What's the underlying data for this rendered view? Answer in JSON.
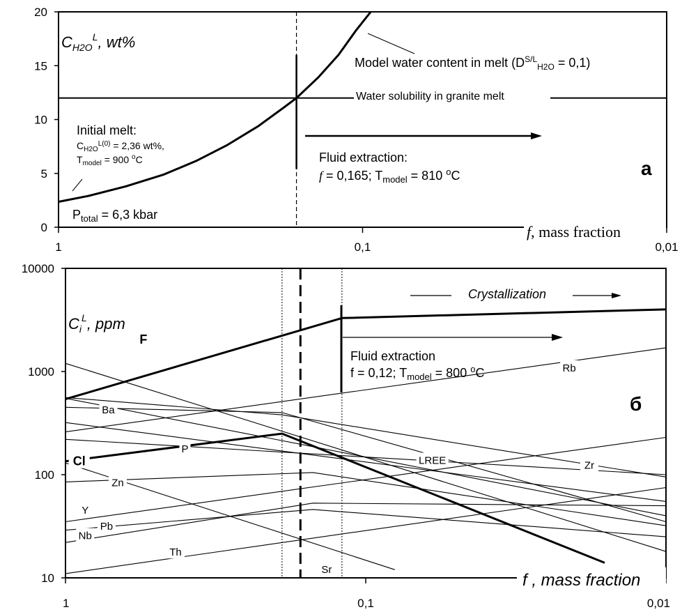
{
  "chart_data": [
    {
      "panel": "a",
      "type": "line",
      "x_scale": "log",
      "x_reversed": true,
      "xlim": [
        1,
        0.01
      ],
      "ylim": [
        0,
        20
      ],
      "x_ticks": [
        "1",
        "0,1",
        "0,01"
      ],
      "y_ticks": [
        "0",
        "5",
        "10",
        "15",
        "20"
      ],
      "ylabel": {
        "main": "C",
        "sub": "H2O",
        "sup": "L",
        "rest": ", wt%"
      },
      "xlabel": {
        "var": "f",
        "rest": ", mass fraction"
      },
      "panel_label": "a",
      "vline_x": 0.165,
      "hline_y": 12,
      "series": [
        {
          "label": "Model water content in melt (D",
          "x": [
            1,
            0.8,
            0.6,
            0.45,
            0.35,
            0.28,
            0.22,
            0.18,
            0.165,
            0.14,
            0.12,
            0.105,
            0.094
          ],
          "y": [
            2.36,
            2.9,
            3.8,
            4.9,
            6.2,
            7.6,
            9.4,
            11.2,
            12.0,
            13.9,
            16.0,
            18.3,
            20.0
          ]
        }
      ],
      "annotations": {
        "model_water": {
          "text": "Model water content in melt (D",
          "sup": "S/L",
          "sub": "H2O",
          "tail": " = 0,1)"
        },
        "solubility": "Water solubility in granite melt",
        "initial_melt": "Initial melt:",
        "init_conc": {
          "main": "C",
          "sub": "H2O",
          "sup": "L(0)",
          "tail": " = 2,36 wt%,"
        },
        "init_temp": {
          "main": "T",
          "sub": "model",
          "tail": " = 900 ",
          "deg": "o",
          "unit": "C"
        },
        "pressure": {
          "main": "P",
          "sub": "total",
          "tail": " = 6,3 kbar"
        },
        "fluid_title": "Fluid extraction:",
        "fluid_params": {
          "var": "f",
          "val": " = 0,165;  T",
          "sub": "model",
          "tail": " = 810 ",
          "deg": "o",
          "unit": "C"
        }
      }
    },
    {
      "panel": "б",
      "type": "line",
      "x_scale": "log",
      "y_scale": "log",
      "x_reversed": true,
      "xlim": [
        1,
        0.01
      ],
      "ylim": [
        10,
        10000
      ],
      "x_ticks": [
        "1",
        "0,1",
        "0,01"
      ],
      "y_ticks": [
        "10",
        "100",
        "1000",
        "10000"
      ],
      "ylabel": {
        "main": "C",
        "sub": "i",
        "sup": "L",
        "rest": ", ppm"
      },
      "xlabel": {
        "var": "f",
        "rest": " ,   mass fraction"
      },
      "panel_label": "б",
      "vlines": [
        0.19,
        0.165,
        0.12
      ],
      "crystallization": "Crystallization",
      "fluid_title": "Fluid extraction",
      "fluid_params": {
        "val": "f = 0,12;  T",
        "sub": "model",
        "tail": "  = 800 ",
        "deg": "o",
        "unit": "C"
      },
      "series": [
        {
          "name": "F",
          "bold": true,
          "x": [
            1,
            0.12,
            0.01
          ],
          "y": [
            540,
            3300,
            4000
          ],
          "lx": 0.55,
          "ly": 2050
        },
        {
          "name": "Cl",
          "bold": true,
          "x": [
            1,
            0.19,
            0.016
          ],
          "y": [
            135,
            250,
            14
          ],
          "lx": 0.9,
          "ly": 135
        },
        {
          "name": "Rb",
          "bold": false,
          "x": [
            1,
            0.01
          ],
          "y": [
            260,
            1700
          ],
          "lx": 0.021,
          "ly": 1100
        },
        {
          "name": "Ba",
          "bold": false,
          "x": [
            1,
            0.19,
            0.01
          ],
          "y": [
            560,
            380,
            95
          ],
          "lx": 0.72,
          "ly": 430
        },
        {
          "name": "Zr",
          "bold": false,
          "x": [
            1,
            0.01
          ],
          "y": [
            220,
            100
          ],
          "lx": 0.018,
          "ly": 125
        },
        {
          "name": "LREE",
          "bold": false,
          "x": [
            1,
            0.01
          ],
          "y": [
            550,
            40
          ],
          "lx": 0.06,
          "ly": 140
        },
        {
          "name": "P",
          "bold": false,
          "x": [
            1,
            0.01
          ],
          "y": [
            1200,
            18
          ],
          "lx": 0.4,
          "ly": 180
        },
        {
          "name": "Zn",
          "bold": false,
          "x": [
            1,
            0.15,
            0.01
          ],
          "y": [
            85,
            105,
            32
          ],
          "lx": 0.67,
          "ly": 85
        },
        {
          "name": "Y",
          "bold": false,
          "x": [
            1,
            0.01
          ],
          "y": [
            35,
            230
          ],
          "lx": 0.86,
          "ly": 46
        },
        {
          "name": "Pb",
          "bold": false,
          "x": [
            1,
            0.15,
            0.01
          ],
          "y": [
            29,
            46,
            25
          ],
          "lx": 0.73,
          "ly": 32
        },
        {
          "name": "Nb",
          "bold": false,
          "x": [
            1,
            0.15,
            0.01
          ],
          "y": [
            22,
            53,
            50
          ],
          "lx": 0.86,
          "ly": 26
        },
        {
          "name": "Th",
          "bold": false,
          "x": [
            1,
            0.01
          ],
          "y": [
            11,
            75
          ],
          "lx": 0.43,
          "ly": 18
        },
        {
          "name": "Sr",
          "bold": false,
          "x": [
            1,
            0.08
          ],
          "y": [
            130,
            12
          ],
          "lx": 0.135,
          "ly": 12.2
        },
        {
          "name": "",
          "bold": false,
          "x": [
            1,
            0.19,
            0.01
          ],
          "y": [
            450,
            400,
            35
          ]
        },
        {
          "name": "",
          "bold": false,
          "x": [
            1,
            0.01
          ],
          "y": [
            320,
            55
          ]
        }
      ]
    }
  ]
}
